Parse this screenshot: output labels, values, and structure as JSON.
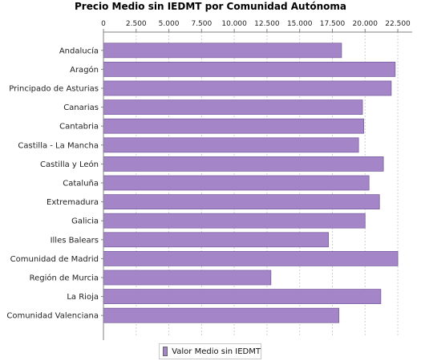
{
  "chart_data": {
    "type": "bar",
    "orientation": "horizontal",
    "title": "Precio Medio sin IEDMT por Comunidad Autónoma",
    "categories": [
      "Andalucía",
      "Aragón",
      "Principado de Asturias",
      "Canarias",
      "Cantabria",
      "Castilla - La Mancha",
      "Castilla y León",
      "Cataluña",
      "Extremadura",
      "Galicia",
      "Illes Balears",
      "Comunidad de Madrid",
      "Región de Murcia",
      "La Rioja",
      "Comunidad Valenciana"
    ],
    "series": [
      {
        "name": "Valor Medio sin IEDMT",
        "values": [
          18200,
          22300,
          22000,
          19800,
          19900,
          19500,
          21400,
          20300,
          21100,
          20000,
          17200,
          22500,
          12800,
          21200,
          18000
        ]
      }
    ],
    "xlim": [
      0,
      23600
    ],
    "xticks": [
      "0",
      "2.500",
      "5.000",
      "7.500",
      "10.000",
      "12.500",
      "15.000",
      "17.500",
      "20.000",
      "22.500"
    ],
    "xtick_values": [
      0,
      2500,
      5000,
      7500,
      10000,
      12500,
      15000,
      17500,
      20000,
      22500
    ],
    "x_axis_position": "top",
    "grid": true,
    "legend_position": "bottom-center",
    "colors": {
      "bar": "#a485c8",
      "bar_border": "#7a5ea3",
      "grid": "#d0d0d0",
      "axis": "#808080"
    }
  }
}
